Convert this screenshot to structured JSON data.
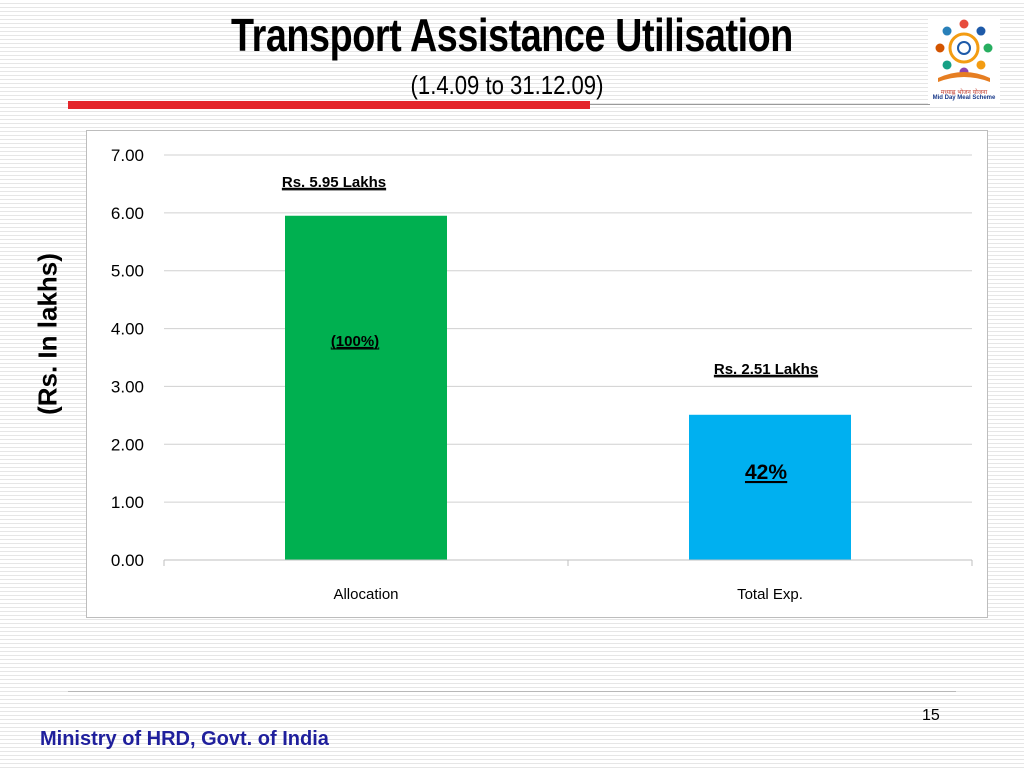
{
  "slide": {
    "title": "Transport Assistance Utilisation",
    "subtitle": "(1.4.09 to 31.12.09)",
    "page_number": "15",
    "footer": "Ministry of HRD, Govt. of India",
    "logo": {
      "hindi_text": "मध्याह्न भोजन योजना",
      "english_text": "Mid Day Meal Scheme"
    }
  },
  "chart_data": {
    "type": "bar",
    "categories": [
      "Allocation",
      "Total Exp."
    ],
    "values": [
      5.95,
      2.51
    ],
    "colors": [
      "#00b050",
      "#00b0f0"
    ],
    "ylabel": "(Rs. In lakhs)",
    "ylim": [
      0,
      7
    ],
    "yticks": [
      "0.00",
      "1.00",
      "2.00",
      "3.00",
      "4.00",
      "5.00",
      "6.00",
      "7.00"
    ],
    "grid": true,
    "annotations": [
      {
        "text": "Rs.  5.95 Lakhs",
        "category": "Allocation",
        "position": "above bar"
      },
      {
        "text": "(100%)",
        "category": "Allocation",
        "position": "inside bar"
      },
      {
        "text": "Rs.  2.51 Lakhs",
        "category": "Total Exp.",
        "position": "above bar"
      },
      {
        "text": "42%",
        "category": "Total Exp.",
        "position": "inside bar"
      }
    ]
  }
}
